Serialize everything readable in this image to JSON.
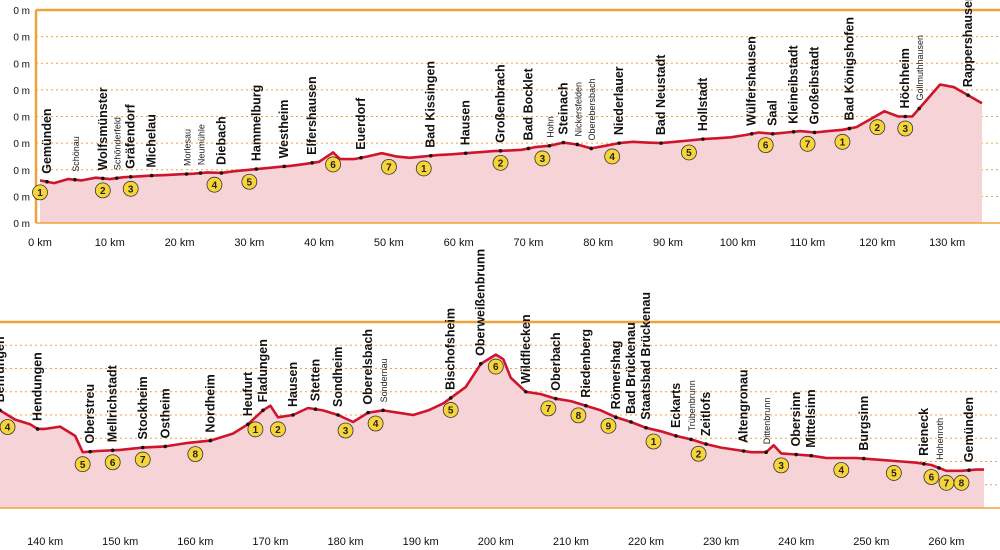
{
  "chart_data": [
    {
      "type": "area",
      "x_unit": "km",
      "y_unit": "m",
      "xlim": [
        0,
        135
      ],
      "ylim": [
        0,
        800
      ],
      "y_tick_labels": [
        "0 m",
        "0 m",
        "0 m",
        "0 m",
        "0 m",
        "0 m",
        "0 m",
        "0 m",
        "0 m"
      ],
      "x_ticks": [
        {
          "km": 0,
          "label": "0 km"
        },
        {
          "km": 10,
          "label": "10 km"
        },
        {
          "km": 20,
          "label": "20 km"
        },
        {
          "km": 30,
          "label": "30 km"
        },
        {
          "km": 40,
          "label": "40 km"
        },
        {
          "km": 50,
          "label": "50 km"
        },
        {
          "km": 60,
          "label": "60 km"
        },
        {
          "km": 70,
          "label": "70 km"
        },
        {
          "km": 80,
          "label": "80 km"
        },
        {
          "km": 90,
          "label": "90 km"
        },
        {
          "km": 100,
          "label": "100 km"
        },
        {
          "km": 110,
          "label": "110 km"
        },
        {
          "km": 120,
          "label": "120 km"
        },
        {
          "km": 130,
          "label": "130 km"
        }
      ],
      "elevation": [
        [
          0,
          160
        ],
        [
          2,
          150
        ],
        [
          4,
          165
        ],
        [
          6,
          160
        ],
        [
          8,
          170
        ],
        [
          10,
          165
        ],
        [
          12,
          172
        ],
        [
          14,
          175
        ],
        [
          16,
          178
        ],
        [
          18,
          180
        ],
        [
          20,
          183
        ],
        [
          22,
          185
        ],
        [
          24,
          190
        ],
        [
          26,
          188
        ],
        [
          28,
          195
        ],
        [
          30,
          200
        ],
        [
          32,
          205
        ],
        [
          34,
          210
        ],
        [
          36,
          215
        ],
        [
          38,
          222
        ],
        [
          40,
          230
        ],
        [
          42,
          265
        ],
        [
          43,
          240
        ],
        [
          45,
          240
        ],
        [
          47,
          250
        ],
        [
          49,
          262
        ],
        [
          51,
          250
        ],
        [
          53,
          245
        ],
        [
          55,
          250
        ],
        [
          57,
          255
        ],
        [
          59,
          258
        ],
        [
          61,
          262
        ],
        [
          63,
          266
        ],
        [
          65,
          270
        ],
        [
          67,
          272
        ],
        [
          69,
          275
        ],
        [
          71,
          285
        ],
        [
          73,
          290
        ],
        [
          75,
          302
        ],
        [
          77,
          295
        ],
        [
          79,
          280
        ],
        [
          81,
          290
        ],
        [
          83,
          300
        ],
        [
          85,
          305
        ],
        [
          87,
          302
        ],
        [
          89,
          300
        ],
        [
          91,
          305
        ],
        [
          93,
          310
        ],
        [
          95,
          315
        ],
        [
          97,
          318
        ],
        [
          99,
          322
        ],
        [
          101,
          330
        ],
        [
          103,
          340
        ],
        [
          105,
          335
        ],
        [
          107,
          340
        ],
        [
          109,
          345
        ],
        [
          111,
          340
        ],
        [
          113,
          345
        ],
        [
          115,
          350
        ],
        [
          117,
          360
        ],
        [
          119,
          390
        ],
        [
          121,
          420
        ],
        [
          123,
          400
        ],
        [
          125,
          400
        ],
        [
          127,
          460
        ],
        [
          129,
          520
        ],
        [
          131,
          510
        ],
        [
          133,
          480
        ],
        [
          135,
          450
        ]
      ],
      "towns": [
        {
          "km": 1,
          "name": "Gemünden"
        },
        {
          "km": 5,
          "name": "Schönau",
          "minor": true
        },
        {
          "km": 9,
          "name": "Wolfsmünster"
        },
        {
          "km": 11,
          "name": "Schönderfeld",
          "minor": true
        },
        {
          "km": 13,
          "name": "Gräfendorf"
        },
        {
          "km": 16,
          "name": "Michelau"
        },
        {
          "km": 21,
          "name": "Morlesau",
          "minor": true
        },
        {
          "km": 23,
          "name": "Neumühle",
          "minor": true
        },
        {
          "km": 26,
          "name": "Diebach"
        },
        {
          "km": 31,
          "name": "Hammelburg"
        },
        {
          "km": 35,
          "name": "Westheim"
        },
        {
          "km": 39,
          "name": "Elfershausen"
        },
        {
          "km": 46,
          "name": "Euerdorf"
        },
        {
          "km": 56,
          "name": "Bad Kissingen"
        },
        {
          "km": 61,
          "name": "Hausen"
        },
        {
          "km": 66,
          "name": "Großenbrach"
        },
        {
          "km": 70,
          "name": "Bad Bocklet"
        },
        {
          "km": 73,
          "name": "Hohn",
          "minor": true
        },
        {
          "km": 75,
          "name": "Steinach"
        },
        {
          "km": 77,
          "name": "Nickersfelden",
          "minor": true
        },
        {
          "km": 79,
          "name": "Oberebersbach",
          "minor": true
        },
        {
          "km": 83,
          "name": "Niederlauer"
        },
        {
          "km": 89,
          "name": "Bad Neustadt"
        },
        {
          "km": 95,
          "name": "Hollstadt"
        },
        {
          "km": 102,
          "name": "Wülfershausen"
        },
        {
          "km": 105,
          "name": "Saal"
        },
        {
          "km": 108,
          "name": "Kleineibstadt"
        },
        {
          "km": 111,
          "name": "Großeibstadt"
        },
        {
          "km": 116,
          "name": "Bad Königshofen"
        },
        {
          "km": 124,
          "name": "Höchheim"
        },
        {
          "km": 126,
          "name": "Gollmuthhausen",
          "minor": true
        },
        {
          "km": 133,
          "name": "Rappershausen"
        }
      ],
      "stages": [
        {
          "km": 0,
          "label": "1"
        },
        {
          "km": 9,
          "label": "2"
        },
        {
          "km": 13,
          "label": "3"
        },
        {
          "km": 25,
          "label": "4"
        },
        {
          "km": 30,
          "label": "5"
        },
        {
          "km": 42,
          "label": "6"
        },
        {
          "km": 50,
          "label": "7"
        },
        {
          "km": 55,
          "label": "1"
        },
        {
          "km": 66,
          "label": "2"
        },
        {
          "km": 72,
          "label": "3"
        },
        {
          "km": 82,
          "label": "4"
        },
        {
          "km": 93,
          "label": "5"
        },
        {
          "km": 104,
          "label": "6"
        },
        {
          "km": 110,
          "label": "7"
        },
        {
          "km": 115,
          "label": "1"
        },
        {
          "km": 120,
          "label": "2"
        },
        {
          "km": 124,
          "label": "3"
        }
      ]
    },
    {
      "type": "area",
      "x_unit": "km",
      "y_unit": "m",
      "xlim": [
        130,
        265
      ],
      "ylim": [
        0,
        800
      ],
      "x_ticks": [
        {
          "km": 140,
          "label": "140 km"
        },
        {
          "km": 150,
          "label": "150 km"
        },
        {
          "km": 160,
          "label": "160 km"
        },
        {
          "km": 170,
          "label": "170 km"
        },
        {
          "km": 180,
          "label": "180 km"
        },
        {
          "km": 190,
          "label": "190 km"
        },
        {
          "km": 200,
          "label": "200 km"
        },
        {
          "km": 210,
          "label": "210 km"
        },
        {
          "km": 220,
          "label": "220 km"
        },
        {
          "km": 230,
          "label": "230 km"
        },
        {
          "km": 240,
          "label": "240 km"
        },
        {
          "km": 250,
          "label": "250 km"
        },
        {
          "km": 260,
          "label": "260 km"
        }
      ],
      "elevation": [
        [
          130,
          470
        ],
        [
          132,
          460
        ],
        [
          134,
          420
        ],
        [
          136,
          380
        ],
        [
          138,
          360
        ],
        [
          139,
          340
        ],
        [
          140,
          340
        ],
        [
          142,
          350
        ],
        [
          144,
          310
        ],
        [
          145,
          240
        ],
        [
          147,
          245
        ],
        [
          150,
          250
        ],
        [
          153,
          260
        ],
        [
          156,
          265
        ],
        [
          159,
          280
        ],
        [
          162,
          290
        ],
        [
          165,
          320
        ],
        [
          167,
          360
        ],
        [
          169,
          420
        ],
        [
          170,
          440
        ],
        [
          171,
          390
        ],
        [
          173,
          400
        ],
        [
          175,
          430
        ],
        [
          177,
          420
        ],
        [
          179,
          400
        ],
        [
          181,
          370
        ],
        [
          183,
          410
        ],
        [
          185,
          420
        ],
        [
          187,
          410
        ],
        [
          189,
          400
        ],
        [
          191,
          420
        ],
        [
          193,
          450
        ],
        [
          196,
          520
        ],
        [
          198,
          620
        ],
        [
          200,
          660
        ],
        [
          201,
          640
        ],
        [
          202,
          560
        ],
        [
          204,
          500
        ],
        [
          206,
          490
        ],
        [
          208,
          470
        ],
        [
          210,
          460
        ],
        [
          212,
          440
        ],
        [
          214,
          420
        ],
        [
          216,
          390
        ],
        [
          218,
          370
        ],
        [
          220,
          345
        ],
        [
          222,
          330
        ],
        [
          224,
          310
        ],
        [
          226,
          295
        ],
        [
          228,
          275
        ],
        [
          230,
          260
        ],
        [
          232,
          250
        ],
        [
          234,
          240
        ],
        [
          236,
          240
        ],
        [
          237,
          270
        ],
        [
          238,
          235
        ],
        [
          240,
          230
        ],
        [
          242,
          225
        ],
        [
          244,
          215
        ],
        [
          246,
          215
        ],
        [
          248,
          215
        ],
        [
          250,
          210
        ],
        [
          252,
          205
        ],
        [
          254,
          200
        ],
        [
          256,
          195
        ],
        [
          258,
          185
        ],
        [
          260,
          160
        ],
        [
          262,
          160
        ],
        [
          264,
          165
        ],
        [
          265,
          165
        ]
      ],
      "towns": [
        {
          "km": 131,
          "name": "Rappershausen"
        },
        {
          "km": 134,
          "name": "Behrungen"
        },
        {
          "km": 139,
          "name": "Hendungen"
        },
        {
          "km": 146,
          "name": "Oberstreu"
        },
        {
          "km": 149,
          "name": "Mellrichstadt"
        },
        {
          "km": 153,
          "name": "Stockheim"
        },
        {
          "km": 156,
          "name": "Ostheim"
        },
        {
          "km": 162,
          "name": "Nordheim"
        },
        {
          "km": 167,
          "name": "Heufurt"
        },
        {
          "km": 169,
          "name": "Fladungen"
        },
        {
          "km": 173,
          "name": "Hausen"
        },
        {
          "km": 176,
          "name": "Stetten"
        },
        {
          "km": 179,
          "name": "Sondheim"
        },
        {
          "km": 183,
          "name": "Oberelsbach"
        },
        {
          "km": 185,
          "name": "Sondernau",
          "minor": true
        },
        {
          "km": 194,
          "name": "Bischofsheim"
        },
        {
          "km": 198,
          "name": "Oberweißenbrunn"
        },
        {
          "km": 204,
          "name": "Wildflecken"
        },
        {
          "km": 208,
          "name": "Oberbach"
        },
        {
          "km": 212,
          "name": "Riedenberg"
        },
        {
          "km": 216,
          "name": "Römershag"
        },
        {
          "km": 218,
          "name": "Bad Brückenau"
        },
        {
          "km": 220,
          "name": "Staatsbad Brückenau"
        },
        {
          "km": 224,
          "name": "Eckarts"
        },
        {
          "km": 226,
          "name": "Trübenbrunn",
          "minor": true
        },
        {
          "km": 228,
          "name": "Zeitlofs"
        },
        {
          "km": 233,
          "name": "Altengronau"
        },
        {
          "km": 236,
          "name": "Dittenbrunn",
          "minor": true
        },
        {
          "km": 240,
          "name": "Obersinn"
        },
        {
          "km": 242,
          "name": "Mittelsinn"
        },
        {
          "km": 249,
          "name": "Burgsinn"
        },
        {
          "km": 257,
          "name": "Rieneck"
        },
        {
          "km": 259,
          "name": "Hohenroth",
          "minor": true
        },
        {
          "km": 263,
          "name": "Gemünden"
        }
      ],
      "stages": [
        {
          "km": 135,
          "label": "4"
        },
        {
          "km": 145,
          "label": "5"
        },
        {
          "km": 149,
          "label": "6"
        },
        {
          "km": 153,
          "label": "7"
        },
        {
          "km": 160,
          "label": "8"
        },
        {
          "km": 168,
          "label": "1"
        },
        {
          "km": 171,
          "label": "2"
        },
        {
          "km": 180,
          "label": "3"
        },
        {
          "km": 184,
          "label": "4"
        },
        {
          "km": 194,
          "label": "5"
        },
        {
          "km": 200,
          "label": "6"
        },
        {
          "km": 207,
          "label": "7"
        },
        {
          "km": 211,
          "label": "8"
        },
        {
          "km": 215,
          "label": "9"
        },
        {
          "km": 221,
          "label": "1"
        },
        {
          "km": 227,
          "label": "2"
        },
        {
          "km": 238,
          "label": "3"
        },
        {
          "km": 246,
          "label": "4"
        },
        {
          "km": 253,
          "label": "5"
        },
        {
          "km": 258,
          "label": "6"
        },
        {
          "km": 260,
          "label": "7"
        },
        {
          "km": 262,
          "label": "8"
        }
      ]
    }
  ],
  "colors": {
    "fill": "#f6d3d6",
    "line": "#d0142b",
    "frame": "#f0a23a",
    "badge": "#f7d53a",
    "text": "#111111"
  }
}
